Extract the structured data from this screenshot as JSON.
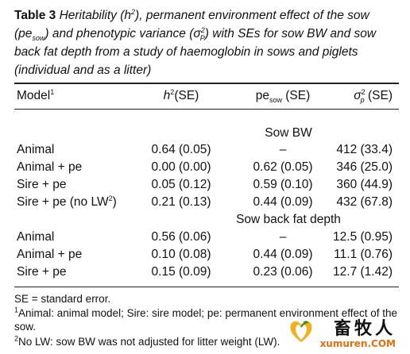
{
  "caption": {
    "label": "Table 3",
    "text_part1": "Heritability (h",
    "text_sup": "2",
    "text_part2": "), permanent environment effect of the sow (pe",
    "text_sub": "sow",
    "text_part3": ") and phenotypic variance (σ",
    "text_sup2": "2",
    "text_sub2": "P",
    "text_part4": ") with SEs for sow BW and sow back fat depth from a study of haemoglobin in sows and piglets (individual and as a litter)"
  },
  "header": {
    "model": "Model",
    "model_sup": "1",
    "h2_base": "h",
    "h2_sup": "2",
    "h2_rest": "(SE)",
    "pe_base": "pe",
    "pe_sub": "sow",
    "pe_rest": " (SE)",
    "sigma_base": "σ",
    "sigma_sup": "2",
    "sigma_sub": "p",
    "sigma_rest": " (SE)"
  },
  "groups": [
    {
      "title": "Sow BW",
      "rows": [
        {
          "model": "Animal",
          "h2": "0.64 (0.05)",
          "pe": "–",
          "sigma": "412 (33.4)"
        },
        {
          "model": "Animal + pe",
          "h2": "0.00 (0.00)",
          "pe": "0.62 (0.05)",
          "sigma": "346 (25.0)"
        },
        {
          "model": "Sire + pe",
          "h2": "0.05 (0.12)",
          "pe": "0.59 (0.10)",
          "sigma": "360 (44.9)"
        },
        {
          "model": "Sire + pe (no LW",
          "model_sup": "2",
          "model_end": ")",
          "h2": "0.21 (0.13)",
          "pe": "0.44 (0.09)",
          "sigma": "432 (67.8)"
        }
      ]
    },
    {
      "title": "Sow back fat depth",
      "rows": [
        {
          "model": "Animal",
          "h2": "0.56 (0.06)",
          "pe": "–",
          "sigma": "12.5 (0.95)"
        },
        {
          "model": "Animal + pe",
          "h2": "0.10 (0.08)",
          "pe": "0.44 (0.09)",
          "sigma": "11.1 (0.76)"
        },
        {
          "model": "Sire + pe",
          "h2": "0.15 (0.09)",
          "pe": "0.23 (0.06)",
          "sigma": "12.7 (1.42)"
        }
      ]
    }
  ],
  "footnotes": {
    "se": "SE = standard error.",
    "note1_sup": "1",
    "note1": "Animal: animal model; Sire: sire model; pe: permanent environment effect of the sow.",
    "note2_sup": "2",
    "note2": "No LW: sow BW was not adjusted for litter weight (LW)."
  },
  "watermark": {
    "chinese": "畜牧人",
    "url": "xumuren.COM",
    "logo_icon": "heart-leaf-logo-icon",
    "orange": "#e07010"
  }
}
